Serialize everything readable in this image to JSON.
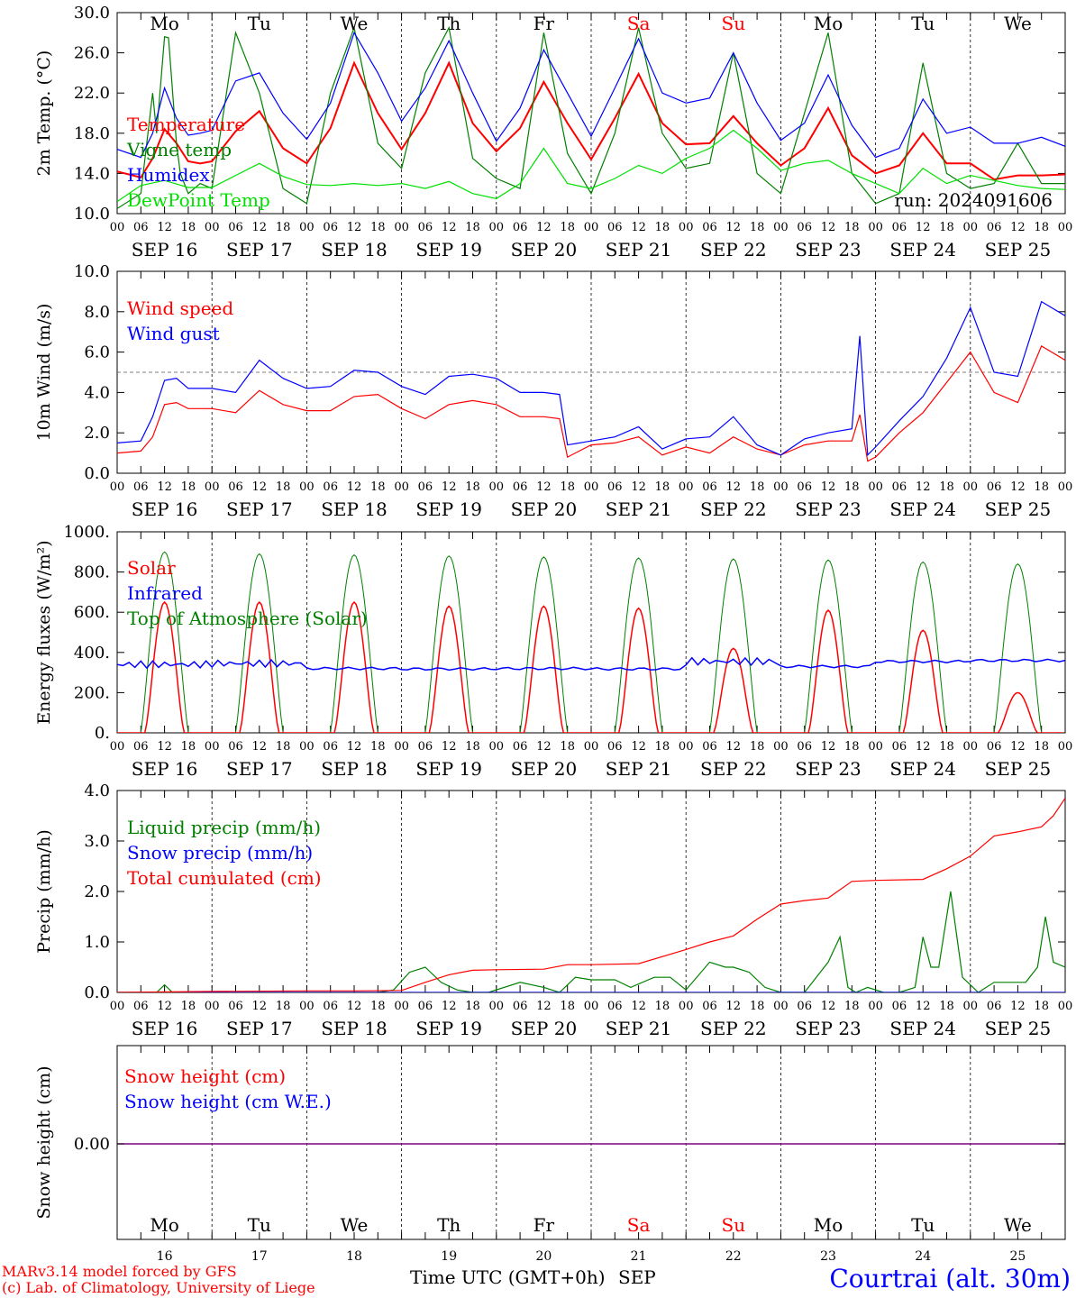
{
  "days": {
    "abbr": [
      "Mo",
      "Tu",
      "We",
      "Th",
      "Fr",
      "Sa",
      "Su",
      "Mo",
      "Tu",
      "We"
    ],
    "dates": [
      "SEP 16",
      "SEP 17",
      "SEP 18",
      "SEP 19",
      "SEP 20",
      "SEP 21",
      "SEP 22",
      "SEP 23",
      "SEP 24",
      "SEP 25"
    ],
    "nums": [
      "16",
      "17",
      "18",
      "19",
      "20",
      "21",
      "22",
      "23",
      "24",
      "25"
    ],
    "weekend_flags": [
      false,
      false,
      false,
      false,
      false,
      true,
      true,
      false,
      false,
      false
    ]
  },
  "hour_ticks": [
    "00",
    "06",
    "12",
    "18"
  ],
  "footer": {
    "model": "MARv3.14 model forced by GFS",
    "copyright": "(c) Lab. of Climatology, University of Liege",
    "time_label": "Time UTC (GMT+0h)",
    "month": "SEP",
    "station": "Courtrai (alt. 30m)"
  },
  "colors": {
    "red": "#ff0000",
    "green": "#008000",
    "blue": "#0000ff",
    "light_green": "#00e000",
    "purple": "#800080",
    "weekend": "#ff0000",
    "station": "#0000ff"
  },
  "chart_data": [
    {
      "type": "line",
      "ylabel": "2m Temp. (°C)",
      "ylim": [
        10,
        30
      ],
      "yticks": [
        "10.0",
        "14.0",
        "18.0",
        "22.0",
        "26.0",
        "30.0"
      ],
      "annotation": "run: 2024091606",
      "x_unit": "hours since 2024-09-16 00 UTC",
      "series": [
        {
          "name": "Temperature",
          "color": "red",
          "x": [
            0,
            6,
            9,
            12,
            15,
            18,
            21,
            24,
            30,
            36,
            42,
            48,
            54,
            60,
            66,
            72,
            78,
            84,
            90,
            96,
            102,
            108,
            114,
            120,
            126,
            132,
            138,
            144,
            150,
            156,
            162,
            168,
            174,
            180,
            186,
            192,
            198,
            204,
            210,
            216,
            222,
            228,
            234,
            240
          ],
          "y": [
            14.2,
            13.6,
            15.5,
            18.4,
            17.0,
            15.2,
            15.0,
            15.2,
            18.2,
            20.2,
            16.5,
            15.0,
            18.5,
            25.0,
            20.0,
            16.4,
            20.0,
            25.0,
            19.0,
            16.2,
            18.5,
            23.1,
            19.0,
            15.4,
            19.5,
            23.9,
            19.0,
            16.9,
            17.0,
            19.7,
            17.0,
            14.8,
            16.5,
            20.5,
            15.8,
            14.0,
            14.8,
            18.0,
            15.0,
            15.0,
            13.4,
            13.8,
            13.8,
            13.9
          ]
        },
        {
          "name": "Vigne temp",
          "color": "green",
          "x": [
            0,
            6,
            9,
            10,
            12,
            13,
            15,
            16,
            18,
            21,
            24,
            30,
            36,
            42,
            48,
            54,
            60,
            66,
            72,
            78,
            84,
            90,
            96,
            102,
            108,
            114,
            120,
            126,
            132,
            138,
            144,
            150,
            156,
            162,
            168,
            174,
            180,
            186,
            192,
            198,
            204,
            210,
            216,
            222,
            228,
            234,
            240
          ],
          "y": [
            10.5,
            12.0,
            22.0,
            18.0,
            27.6,
            27.5,
            17.0,
            14.0,
            12.0,
            13.0,
            12.5,
            28.0,
            22.0,
            12.5,
            11.0,
            22.0,
            28.5,
            17.0,
            14.5,
            24.0,
            28.5,
            15.5,
            13.5,
            12.5,
            28.0,
            16.0,
            12.0,
            18.0,
            28.5,
            18.0,
            14.5,
            15.0,
            26.0,
            14.0,
            12.0,
            20.0,
            28.0,
            14.0,
            11.0,
            12.0,
            25.0,
            14.0,
            12.5,
            13.0,
            17.0,
            13.0,
            13.0
          ]
        },
        {
          "name": "Humidex",
          "color": "blue",
          "x": [
            0,
            6,
            9,
            12,
            15,
            18,
            21,
            24,
            30,
            36,
            42,
            48,
            54,
            60,
            66,
            72,
            78,
            84,
            90,
            96,
            102,
            108,
            114,
            120,
            126,
            132,
            138,
            144,
            150,
            156,
            162,
            168,
            174,
            180,
            186,
            192,
            198,
            204,
            210,
            216,
            222,
            228,
            234,
            240
          ],
          "y": [
            16.4,
            15.6,
            18.0,
            22.5,
            19.5,
            17.8,
            18.0,
            18.3,
            23.2,
            24.0,
            20.0,
            17.4,
            21.0,
            28.0,
            24.0,
            19.2,
            22.5,
            27.2,
            22.0,
            17.2,
            20.5,
            26.3,
            22.0,
            17.7,
            22.5,
            27.4,
            22.0,
            21.0,
            21.5,
            26.0,
            21.0,
            17.3,
            19.0,
            23.8,
            18.8,
            15.6,
            16.5,
            21.4,
            18.0,
            18.6,
            17.0,
            17.0,
            17.6,
            16.7
          ]
        },
        {
          "name": "DewPoint Temp",
          "color": "light_green",
          "x": [
            0,
            6,
            12,
            18,
            24,
            30,
            36,
            42,
            48,
            54,
            60,
            66,
            72,
            78,
            84,
            90,
            96,
            102,
            108,
            114,
            120,
            126,
            132,
            138,
            144,
            150,
            156,
            162,
            168,
            174,
            180,
            186,
            192,
            198,
            204,
            210,
            216,
            222,
            228,
            234,
            240
          ],
          "y": [
            11.2,
            12.8,
            13.3,
            12.6,
            12.6,
            13.8,
            15.0,
            13.7,
            12.9,
            12.8,
            13.0,
            12.8,
            13.0,
            12.5,
            13.2,
            12.0,
            11.5,
            13.0,
            16.5,
            13.0,
            12.5,
            13.5,
            14.8,
            14.0,
            15.5,
            16.5,
            18.3,
            16.5,
            14.3,
            15.0,
            15.3,
            14.0,
            13.0,
            12.0,
            14.5,
            13.0,
            13.8,
            13.3,
            12.8,
            12.5,
            12.4
          ]
        }
      ]
    },
    {
      "type": "line",
      "ylabel": "10m Wind (m/s)",
      "ylim": [
        0,
        10
      ],
      "yticks": [
        "0.0",
        "2.0",
        "4.0",
        "6.0",
        "8.0",
        "10.0"
      ],
      "reference_line": 5,
      "x_unit": "hours since 2024-09-16 00 UTC",
      "series": [
        {
          "name": "Wind speed",
          "color": "red",
          "x": [
            0,
            6,
            9,
            12,
            15,
            18,
            24,
            30,
            36,
            42,
            48,
            54,
            60,
            66,
            72,
            78,
            84,
            90,
            96,
            102,
            108,
            112,
            114,
            120,
            126,
            132,
            138,
            144,
            150,
            156,
            162,
            168,
            174,
            180,
            186,
            188,
            190,
            192,
            198,
            204,
            210,
            216,
            222,
            228,
            234,
            240
          ],
          "y": [
            1.0,
            1.1,
            1.8,
            3.4,
            3.5,
            3.2,
            3.2,
            3.0,
            4.1,
            3.4,
            3.1,
            3.1,
            3.8,
            3.9,
            3.2,
            2.7,
            3.4,
            3.6,
            3.4,
            2.8,
            2.8,
            2.7,
            0.8,
            1.4,
            1.5,
            1.8,
            0.9,
            1.3,
            1.0,
            1.8,
            1.2,
            0.9,
            1.4,
            1.6,
            1.6,
            2.9,
            0.6,
            0.8,
            2.0,
            3.0,
            4.5,
            6.0,
            4.0,
            3.5,
            6.3,
            5.6
          ]
        },
        {
          "name": "Wind gust",
          "color": "blue",
          "x": [
            0,
            6,
            9,
            12,
            15,
            18,
            24,
            30,
            36,
            42,
            48,
            54,
            60,
            66,
            72,
            78,
            84,
            90,
            96,
            102,
            108,
            112,
            114,
            120,
            126,
            132,
            138,
            144,
            150,
            156,
            162,
            168,
            174,
            180,
            186,
            188,
            190,
            192,
            198,
            204,
            210,
            216,
            222,
            228,
            234,
            240
          ],
          "y": [
            1.5,
            1.6,
            2.8,
            4.6,
            4.7,
            4.2,
            4.2,
            4.0,
            5.6,
            4.7,
            4.2,
            4.3,
            5.1,
            5.0,
            4.3,
            3.9,
            4.8,
            4.9,
            4.7,
            4.0,
            4.0,
            3.9,
            1.4,
            1.6,
            1.8,
            2.3,
            1.2,
            1.7,
            1.8,
            2.8,
            1.4,
            0.9,
            1.7,
            2.0,
            2.2,
            6.8,
            0.9,
            1.3,
            2.6,
            3.8,
            5.7,
            8.2,
            5.0,
            4.8,
            8.5,
            7.8
          ]
        }
      ]
    },
    {
      "type": "line",
      "ylabel": "Energy fluxes (W/m²)",
      "ylim": [
        0,
        1000
      ],
      "yticks": [
        "0.",
        "200.",
        "400.",
        "600.",
        "800.",
        "1000."
      ],
      "x_unit": "hours since 2024-09-16 00 UTC",
      "solar_peaks": [
        650,
        650,
        650,
        630,
        630,
        620,
        420,
        610,
        510,
        200
      ],
      "toa_peaks": [
        900,
        890,
        885,
        880,
        875,
        870,
        865,
        860,
        850,
        840
      ],
      "infrared_mean": [
        340,
        345,
        320,
        318,
        320,
        318,
        355,
        330,
        355,
        360
      ],
      "series": [
        {
          "name": "Solar",
          "color": "red"
        },
        {
          "name": "Infrared",
          "color": "blue"
        },
        {
          "name": "Top of Atmosphere (Solar)",
          "color": "green"
        }
      ]
    },
    {
      "type": "line",
      "ylabel": "Precip (mm/h)",
      "ylim": [
        0,
        4
      ],
      "yticks": [
        "0.0",
        "1.0",
        "2.0",
        "3.0",
        "4.0"
      ],
      "x_unit": "hours since 2024-09-16 00 UTC",
      "series": [
        {
          "name": "Liquid precip (mm/h)",
          "color": "green",
          "x": [
            0,
            10,
            12,
            14,
            16,
            66,
            70,
            74,
            78,
            82,
            86,
            90,
            94,
            102,
            108,
            112,
            116,
            120,
            126,
            130,
            136,
            140,
            144,
            150,
            154,
            156,
            160,
            164,
            168,
            174,
            178,
            180,
            183,
            185,
            187,
            190,
            194,
            198,
            202,
            204,
            206,
            208,
            211,
            214,
            218,
            222,
            226,
            230,
            233,
            235,
            237,
            240
          ],
          "y": [
            0,
            0,
            0.15,
            0,
            0,
            0,
            0.05,
            0.4,
            0.5,
            0.2,
            0.05,
            0,
            0,
            0.2,
            0.1,
            0,
            0.3,
            0.25,
            0.25,
            0.1,
            0.3,
            0.3,
            0.05,
            0.6,
            0.5,
            0.5,
            0.4,
            0.1,
            0,
            0,
            0.4,
            0.6,
            1.1,
            0.1,
            0,
            0.1,
            0,
            0,
            0.1,
            1.1,
            0.5,
            0.5,
            2.0,
            0.3,
            0,
            0.2,
            0.2,
            0.2,
            0.5,
            1.5,
            0.6,
            0.5
          ]
        },
        {
          "name": "Snow precip (mm/h)",
          "color": "blue",
          "x": [
            0,
            240
          ],
          "y": [
            0,
            0
          ]
        },
        {
          "name": "Total cumulated (cm)",
          "color": "red",
          "x": [
            0,
            24,
            48,
            60,
            72,
            78,
            84,
            90,
            96,
            108,
            114,
            120,
            132,
            144,
            150,
            156,
            162,
            168,
            174,
            180,
            186,
            192,
            204,
            210,
            216,
            222,
            228,
            234,
            237,
            240
          ],
          "y": [
            0,
            0.02,
            0.03,
            0.03,
            0.04,
            0.2,
            0.35,
            0.44,
            0.45,
            0.46,
            0.55,
            0.55,
            0.57,
            0.85,
            1.0,
            1.12,
            1.45,
            1.75,
            1.82,
            1.87,
            2.2,
            2.22,
            2.24,
            2.45,
            2.7,
            3.1,
            3.18,
            3.28,
            3.5,
            3.85
          ]
        }
      ]
    },
    {
      "type": "line",
      "ylabel": "Snow height (cm)",
      "yticks": [
        "0.00"
      ],
      "x_unit": "hours since 2024-09-16 00 UTC",
      "series": [
        {
          "name": "Snow height (cm)",
          "color": "red",
          "x": [
            0,
            240
          ],
          "y": [
            0,
            0
          ]
        },
        {
          "name": "Snow height (cm W.E.)",
          "color": "blue",
          "x": [
            0,
            240
          ],
          "y": [
            0,
            0
          ]
        }
      ]
    }
  ]
}
